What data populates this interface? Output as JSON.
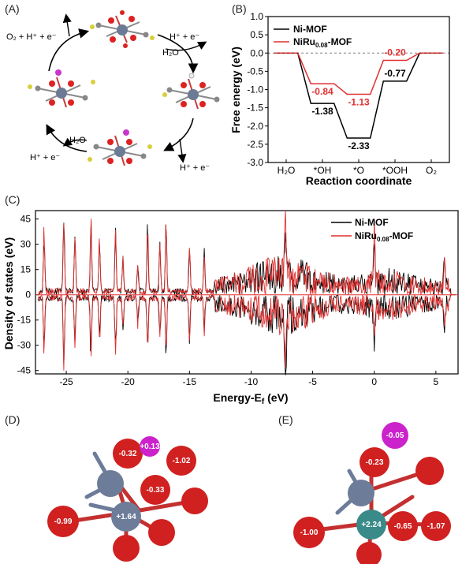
{
  "panels": {
    "a": "(A)",
    "b": "(B)",
    "c": "(C)",
    "d": "(D)",
    "e": "(E)"
  },
  "colors": {
    "ni_mof": "#000000",
    "niru_mof": "#e0302f"
  },
  "cycle_labels": {
    "top_left": "O₂ + H⁺ + e⁻",
    "top_right": "H⁺ + e⁻",
    "top_right_water": "H₂O",
    "bottom_left_water": "H₂O",
    "bottom_left": "H⁺ + e⁻",
    "bottom_right": "H⁺ + e⁻"
  },
  "chart_data": [
    {
      "type": "line",
      "panel": "B",
      "categories": [
        "H₂O",
        "*OH",
        "*O",
        "*OOH",
        "O₂"
      ],
      "series": [
        {
          "name": "Ni-MOF",
          "values": [
            0,
            -1.38,
            -2.33,
            -0.77,
            0
          ]
        },
        {
          "name": "NiRu0.08-MOF",
          "values": [
            0,
            -0.84,
            -1.13,
            -0.2,
            0
          ]
        }
      ],
      "data_labels": {
        "ni": [
          "-1.38",
          "-2.33",
          "-0.77"
        ],
        "ru": [
          "-0.84",
          "-1.13",
          "-0.20"
        ]
      },
      "legend": {
        "ni": "Ni-MOF",
        "ru_pre": "NiRu",
        "ru_sub": "0.08",
        "ru_post": "-MOF"
      },
      "xlabel": "Reaction coordinate",
      "ylabel": "Free energy (eV)",
      "ylim": [
        -3.0,
        1.0
      ],
      "yticks": [
        "1.0",
        "0.5",
        "0.0",
        "-0.5",
        "-1.0",
        "-1.5",
        "-2.0",
        "-2.5",
        "-3.0"
      ]
    },
    {
      "type": "line",
      "panel": "C",
      "series": [
        {
          "name": "Ni-MOF"
        },
        {
          "name": "NiRu0.08-MOF"
        }
      ],
      "legend": {
        "ni": "Ni-MOF",
        "ru_pre": "NiRu",
        "ru_sub": "0.08",
        "ru_post": "-MOF"
      },
      "xlabel_pre": "Energy-E",
      "xlabel_sub": "f",
      "xlabel_post": " (eV)",
      "ylabel": "Density of states (eV)",
      "xlim": [
        -27.5,
        6.8
      ],
      "ylim": [
        -47,
        50
      ],
      "xticks": [
        "-25",
        "-20",
        "-15",
        "-10",
        "-5",
        "0",
        "5"
      ],
      "yticks": [
        "45",
        "30",
        "15",
        "0",
        "-15",
        "-30",
        "-45"
      ]
    }
  ],
  "structures": {
    "d_labels": [
      "-0.32",
      "+0.13",
      "-1.02",
      "-0.33",
      "-0.99",
      "+1.64"
    ],
    "e_labels": [
      "-0.05",
      "-0.23",
      "-1.00",
      "+2.24",
      "-0.65",
      "-1.07"
    ]
  }
}
